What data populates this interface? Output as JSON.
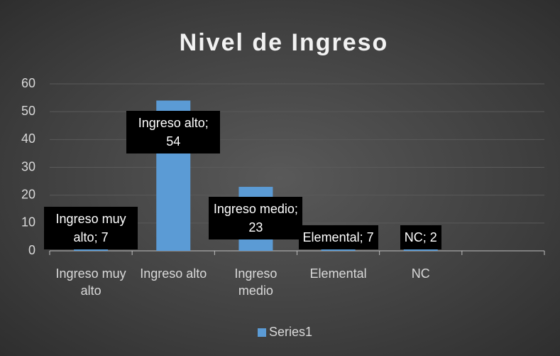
{
  "chart_data": {
    "type": "bar",
    "title": "Nivel de Ingreso",
    "categories": [
      "Ingreso muy alto",
      "Ingreso alto",
      "Ingreso medio",
      "Elemental",
      "NC",
      null
    ],
    "series": [
      {
        "name": "Series1",
        "color": "#5b9bd5",
        "values": [
          7,
          54,
          23,
          7,
          2,
          null
        ],
        "value_labels": [
          "Ingreso muy alto; 7",
          "Ingreso alto; 54",
          "Ingreso medio; 23",
          "Elemental; 7",
          "NC; 2",
          null
        ]
      }
    ],
    "ylim": [
      0,
      60
    ],
    "yticks": [
      0,
      10,
      20,
      30,
      40,
      50,
      60
    ],
    "grid": true,
    "legend": "bottom"
  }
}
